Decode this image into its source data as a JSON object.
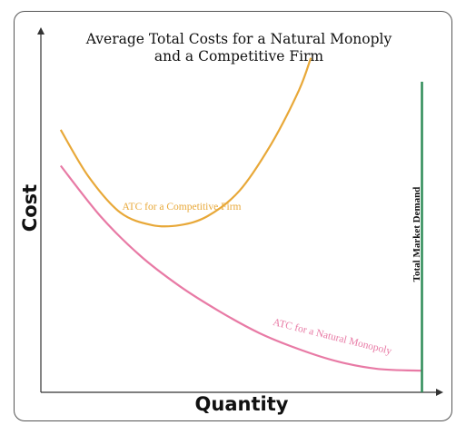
{
  "chart_data": {
    "type": "line",
    "title_lines": [
      "Average Total Costs for a Natural Monoply",
      "and a Competitive Firm"
    ],
    "xlabel": "Quantity",
    "ylabel": "Cost",
    "xlim": [
      0,
      100
    ],
    "ylim": [
      0,
      100
    ],
    "grid": false,
    "legend": "none",
    "series": [
      {
        "name": "ATC for a Competitive Firm",
        "color": "#e8a838",
        "x": [
          5,
          12,
          20,
          28,
          35,
          42,
          50,
          58,
          65,
          68
        ],
        "y": [
          73,
          60,
          50,
          46.5,
          46.5,
          49,
          56,
          69,
          84,
          93
        ]
      },
      {
        "name": "ATC for a Natural Monopoly",
        "color": "#e87aa5",
        "x": [
          5,
          15,
          25,
          35,
          45,
          55,
          65,
          75,
          85,
          96
        ],
        "y": [
          63,
          49,
          38,
          29.5,
          22.5,
          16.5,
          12,
          8.5,
          6.5,
          6
        ]
      }
    ],
    "vlines": [
      {
        "name": "Total Market Demand",
        "x": 96,
        "color": "#2e8b57"
      }
    ]
  }
}
